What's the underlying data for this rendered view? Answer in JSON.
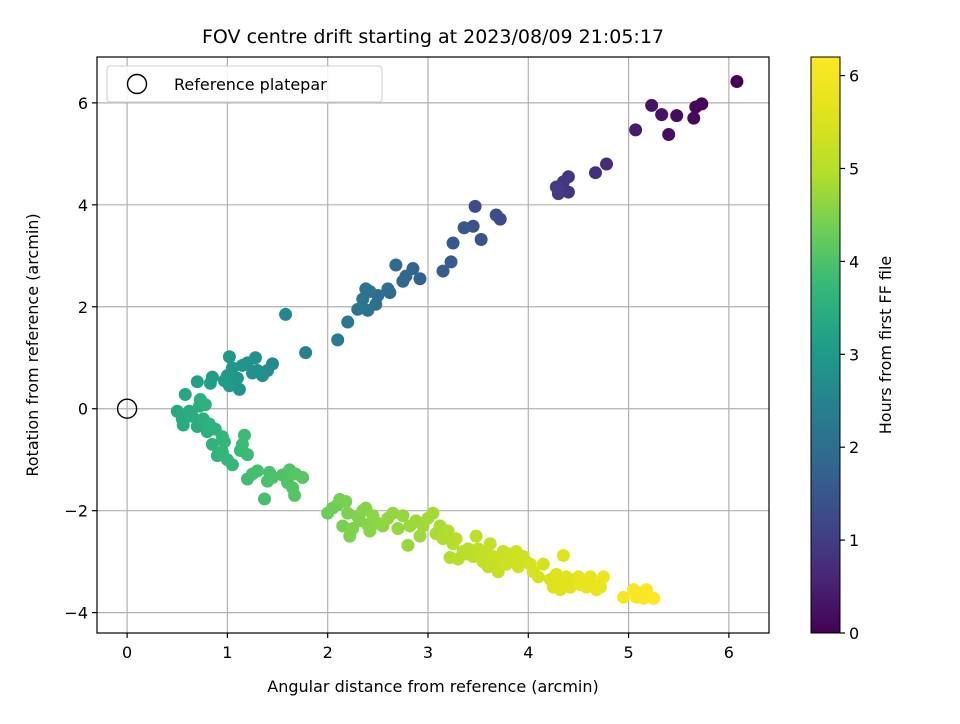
{
  "chart_data": {
    "type": "scatter",
    "title": "FOV centre drift starting at 2023/08/09 21:05:17",
    "xlabel": "Angular distance from reference (arcmin)",
    "ylabel": "Rotation from reference (arcmin)",
    "xlim": [
      -0.3,
      6.4
    ],
    "ylim": [
      -4.4,
      6.9
    ],
    "xticks": [
      0,
      1,
      2,
      3,
      4,
      5,
      6
    ],
    "yticks": [
      -4,
      -2,
      0,
      2,
      4,
      6
    ],
    "grid": true,
    "legend": {
      "position": "top-left",
      "entries": [
        {
          "label": "Reference platepar",
          "marker": "open-circle"
        }
      ]
    },
    "reference": {
      "x": 0,
      "y": 0
    },
    "colorbar": {
      "label": "Hours from first FF file",
      "colormap": "viridis",
      "range": [
        0,
        6.2
      ],
      "ticks": [
        0,
        1,
        2,
        3,
        4,
        5,
        6
      ]
    },
    "points": [
      [
        6.08,
        6.42,
        0.0
      ],
      [
        5.73,
        5.98,
        0.05
      ],
      [
        5.67,
        5.92,
        0.1
      ],
      [
        5.65,
        5.7,
        0.12
      ],
      [
        5.48,
        5.75,
        0.18
      ],
      [
        5.4,
        5.38,
        0.22
      ],
      [
        5.33,
        5.77,
        0.28
      ],
      [
        5.23,
        5.95,
        0.32
      ],
      [
        5.07,
        5.47,
        0.4
      ],
      [
        4.78,
        4.8,
        0.7
      ],
      [
        4.67,
        4.63,
        0.75
      ],
      [
        4.4,
        4.55,
        0.85
      ],
      [
        4.35,
        4.45,
        0.9
      ],
      [
        4.4,
        4.25,
        0.92
      ],
      [
        4.3,
        4.22,
        0.95
      ],
      [
        4.28,
        4.35,
        0.98
      ],
      [
        3.72,
        3.72,
        1.25
      ],
      [
        3.68,
        3.8,
        1.3
      ],
      [
        3.47,
        3.97,
        1.35
      ],
      [
        3.53,
        3.32,
        1.4
      ],
      [
        3.45,
        3.58,
        1.45
      ],
      [
        3.36,
        3.55,
        1.5
      ],
      [
        3.25,
        3.25,
        1.55
      ],
      [
        3.23,
        2.88,
        1.6
      ],
      [
        3.15,
        2.7,
        1.65
      ],
      [
        2.92,
        2.55,
        1.75
      ],
      [
        2.85,
        2.75,
        1.8
      ],
      [
        2.78,
        2.6,
        1.85
      ],
      [
        2.75,
        2.5,
        1.85
      ],
      [
        2.68,
        2.82,
        1.9
      ],
      [
        2.62,
        2.28,
        1.95
      ],
      [
        2.6,
        2.35,
        2.0
      ],
      [
        2.5,
        2.22,
        2.0
      ],
      [
        2.48,
        2.05,
        2.05
      ],
      [
        2.42,
        2.3,
        2.1
      ],
      [
        2.38,
        2.35,
        2.1
      ],
      [
        2.4,
        1.93,
        2.15
      ],
      [
        2.35,
        2.15,
        2.15
      ],
      [
        2.3,
        1.95,
        2.2
      ],
      [
        2.2,
        1.7,
        2.25
      ],
      [
        2.1,
        1.35,
        2.3
      ],
      [
        1.78,
        1.1,
        2.5
      ],
      [
        1.58,
        1.85,
        2.55
      ],
      [
        1.45,
        0.88,
        2.65
      ],
      [
        1.4,
        0.75,
        2.7
      ],
      [
        1.35,
        0.65,
        2.75
      ],
      [
        1.28,
        1.0,
        2.78
      ],
      [
        1.3,
        0.75,
        2.8
      ],
      [
        1.25,
        0.7,
        2.82
      ],
      [
        1.2,
        0.9,
        2.85
      ],
      [
        1.15,
        0.85,
        2.88
      ],
      [
        1.12,
        0.38,
        2.9
      ],
      [
        1.1,
        0.6,
        2.92
      ],
      [
        1.05,
        0.8,
        2.95
      ],
      [
        1.0,
        0.65,
        2.97
      ],
      [
        1.02,
        1.02,
        3.0
      ],
      [
        1.02,
        0.45,
        3.02
      ],
      [
        0.97,
        0.55,
        3.05
      ],
      [
        0.85,
        0.62,
        3.1
      ],
      [
        0.83,
        0.5,
        3.12
      ],
      [
        0.7,
        0.53,
        3.15
      ],
      [
        0.58,
        0.28,
        3.3
      ],
      [
        0.5,
        -0.05,
        3.35
      ],
      [
        0.55,
        -0.2,
        3.38
      ],
      [
        0.56,
        -0.32,
        3.4
      ],
      [
        0.62,
        -0.05,
        3.42
      ],
      [
        0.65,
        -0.15,
        3.45
      ],
      [
        0.7,
        -0.35,
        3.45
      ],
      [
        0.72,
        0.05,
        3.48
      ],
      [
        0.73,
        0.18,
        3.5
      ],
      [
        0.76,
        -0.2,
        3.5
      ],
      [
        0.8,
        -0.45,
        3.52
      ],
      [
        0.78,
        0.08,
        3.55
      ],
      [
        0.82,
        -0.3,
        3.55
      ],
      [
        0.85,
        -0.7,
        3.58
      ],
      [
        0.88,
        -0.4,
        3.6
      ],
      [
        0.9,
        -0.92,
        3.62
      ],
      [
        0.95,
        -0.55,
        3.65
      ],
      [
        0.95,
        -0.85,
        3.65
      ],
      [
        0.97,
        -0.65,
        3.68
      ],
      [
        1.0,
        -1.0,
        3.7
      ],
      [
        1.05,
        -1.1,
        3.72
      ],
      [
        1.13,
        -0.82,
        3.75
      ],
      [
        1.15,
        -0.7,
        3.78
      ],
      [
        1.17,
        -0.52,
        3.8
      ],
      [
        1.2,
        -0.9,
        3.8
      ],
      [
        1.2,
        -1.38,
        3.85
      ],
      [
        1.25,
        -1.28,
        3.88
      ],
      [
        1.3,
        -1.22,
        3.9
      ],
      [
        1.37,
        -1.77,
        3.92
      ],
      [
        1.4,
        -1.42,
        3.95
      ],
      [
        1.42,
        -1.25,
        3.95
      ],
      [
        1.45,
        -1.35,
        3.98
      ],
      [
        1.55,
        -1.3,
        4.0
      ],
      [
        1.6,
        -1.45,
        4.02
      ],
      [
        1.62,
        -1.2,
        4.05
      ],
      [
        1.65,
        -1.55,
        4.05
      ],
      [
        1.67,
        -1.7,
        4.08
      ],
      [
        1.68,
        -1.28,
        4.1
      ],
      [
        1.75,
        -1.35,
        4.12
      ],
      [
        2.0,
        -2.05,
        4.3
      ],
      [
        2.05,
        -1.95,
        4.32
      ],
      [
        2.1,
        -1.88,
        4.35
      ],
      [
        2.12,
        -1.78,
        4.38
      ],
      [
        2.15,
        -2.3,
        4.4
      ],
      [
        2.18,
        -1.82,
        4.42
      ],
      [
        2.2,
        -2.05,
        4.45
      ],
      [
        2.22,
        -2.5,
        4.45
      ],
      [
        2.25,
        -2.35,
        4.48
      ],
      [
        2.3,
        -2.12,
        4.5
      ],
      [
        2.32,
        -2.2,
        4.5
      ],
      [
        2.35,
        -2.0,
        4.52
      ],
      [
        2.38,
        -1.95,
        4.55
      ],
      [
        2.4,
        -2.28,
        4.55
      ],
      [
        2.42,
        -2.4,
        4.58
      ],
      [
        2.45,
        -2.1,
        4.6
      ],
      [
        2.5,
        -2.25,
        4.6
      ],
      [
        2.55,
        -2.3,
        4.62
      ],
      [
        2.6,
        -2.15,
        4.65
      ],
      [
        2.65,
        -2.05,
        4.65
      ],
      [
        2.7,
        -2.35,
        4.68
      ],
      [
        2.75,
        -2.1,
        4.7
      ],
      [
        2.8,
        -2.68,
        4.7
      ],
      [
        2.82,
        -2.3,
        4.72
      ],
      [
        2.88,
        -2.2,
        4.75
      ],
      [
        2.92,
        -2.5,
        4.75
      ],
      [
        2.95,
        -2.3,
        4.78
      ],
      [
        3.0,
        -2.15,
        4.8
      ],
      [
        3.05,
        -2.05,
        4.82
      ],
      [
        3.08,
        -2.45,
        4.85
      ],
      [
        3.12,
        -2.3,
        4.85
      ],
      [
        3.15,
        -2.55,
        4.9
      ],
      [
        3.2,
        -2.4,
        4.92
      ],
      [
        3.22,
        -2.92,
        4.95
      ],
      [
        3.25,
        -2.65,
        4.95
      ],
      [
        3.28,
        -2.55,
        4.98
      ],
      [
        3.3,
        -2.95,
        5.0
      ],
      [
        3.35,
        -2.8,
        5.0
      ],
      [
        3.38,
        -2.85,
        5.02
      ],
      [
        3.4,
        -2.75,
        5.05
      ],
      [
        3.45,
        -2.9,
        5.05
      ],
      [
        3.48,
        -2.5,
        5.08
      ],
      [
        3.5,
        -2.75,
        5.1
      ],
      [
        3.52,
        -2.85,
        5.1
      ],
      [
        3.55,
        -3.0,
        5.12
      ],
      [
        3.58,
        -2.8,
        5.15
      ],
      [
        3.6,
        -3.1,
        5.15
      ],
      [
        3.62,
        -2.65,
        5.18
      ],
      [
        3.65,
        -2.9,
        5.2
      ],
      [
        3.68,
        -3.0,
        5.2
      ],
      [
        3.7,
        -3.2,
        5.22
      ],
      [
        3.72,
        -2.95,
        5.25
      ],
      [
        3.75,
        -2.8,
        5.25
      ],
      [
        3.78,
        -3.05,
        5.28
      ],
      [
        3.82,
        -2.85,
        5.3
      ],
      [
        3.85,
        -2.95,
        5.3
      ],
      [
        3.88,
        -2.8,
        5.32
      ],
      [
        3.9,
        -3.1,
        5.35
      ],
      [
        3.95,
        -2.9,
        5.35
      ],
      [
        3.98,
        -3.0,
        5.38
      ],
      [
        4.02,
        -3.05,
        5.4
      ],
      [
        4.05,
        -3.2,
        5.42
      ],
      [
        4.1,
        -3.3,
        5.45
      ],
      [
        4.15,
        -3.05,
        5.45
      ],
      [
        4.22,
        -3.35,
        5.5
      ],
      [
        4.25,
        -3.5,
        5.52
      ],
      [
        4.28,
        -3.25,
        5.55
      ],
      [
        4.3,
        -3.4,
        5.55
      ],
      [
        4.32,
        -3.55,
        5.58
      ],
      [
        4.35,
        -2.88,
        5.6
      ],
      [
        4.38,
        -3.3,
        5.6
      ],
      [
        4.4,
        -3.45,
        5.62
      ],
      [
        4.42,
        -3.5,
        5.65
      ],
      [
        4.45,
        -3.35,
        5.65
      ],
      [
        4.5,
        -3.3,
        5.68
      ],
      [
        4.52,
        -3.45,
        5.7
      ],
      [
        4.55,
        -3.4,
        5.72
      ],
      [
        4.58,
        -3.5,
        5.75
      ],
      [
        4.62,
        -3.3,
        5.75
      ],
      [
        4.65,
        -3.45,
        5.78
      ],
      [
        4.68,
        -3.55,
        5.8
      ],
      [
        4.72,
        -3.5,
        5.82
      ],
      [
        4.75,
        -3.3,
        5.85
      ],
      [
        4.95,
        -3.7,
        6.0
      ],
      [
        5.05,
        -3.55,
        6.05
      ],
      [
        5.08,
        -3.7,
        6.08
      ],
      [
        5.12,
        -3.62,
        6.1
      ],
      [
        5.15,
        -3.72,
        6.12
      ],
      [
        5.18,
        -3.55,
        6.15
      ],
      [
        5.2,
        -3.68,
        6.18
      ],
      [
        5.25,
        -3.72,
        6.2
      ]
    ]
  }
}
